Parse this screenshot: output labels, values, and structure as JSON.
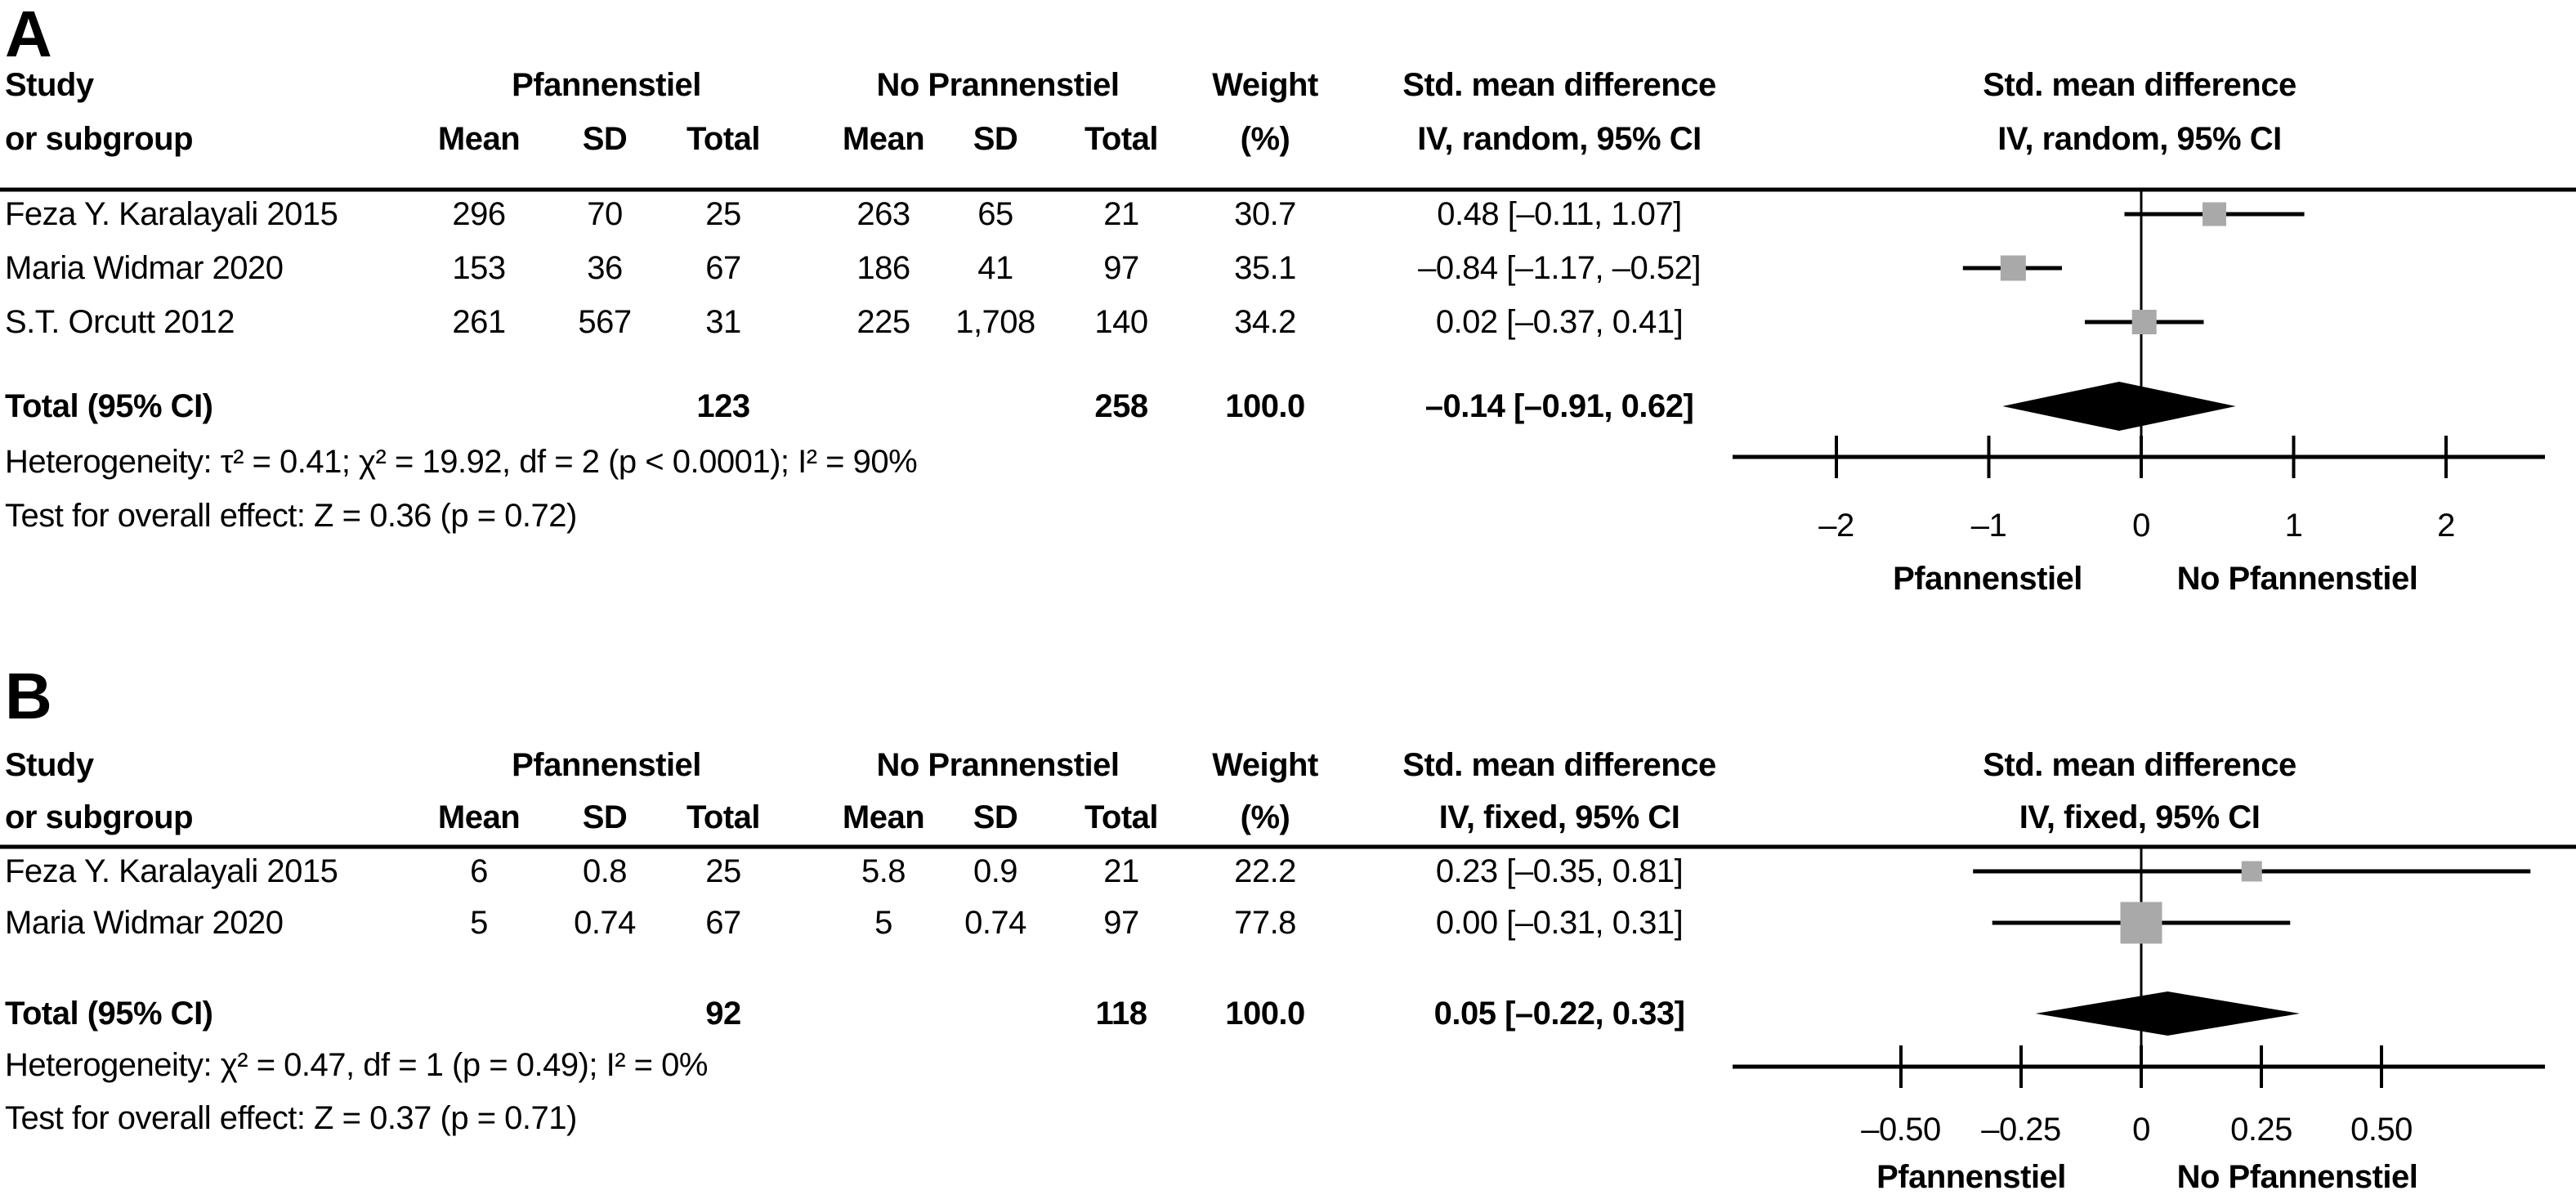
{
  "chart_data": {
    "type": "scatter",
    "subtype": "forest-plot-meta-analysis",
    "marker_color": "#a9a9a9",
    "diamond_color": "#000000",
    "line_color": "#000000",
    "panels": [
      {
        "label": "A",
        "study_header": [
          "Study",
          "or subgroup"
        ],
        "group1_header": "Pfannenstiel",
        "group2_header": "No Prannenstiel",
        "sub_headers": [
          "Mean",
          "SD",
          "Total",
          "Mean",
          "SD",
          "Total"
        ],
        "weight_header": [
          "Weight",
          "(%)"
        ],
        "effect_header": [
          "Std. mean difference",
          "IV, random, 95% CI"
        ],
        "plot_header": [
          "Std. mean difference",
          "IV, random, 95% CI"
        ],
        "rows": [
          {
            "study": "Feza Y. Karalayali 2015",
            "mean1": "296",
            "sd1": "70",
            "total1": "25",
            "mean2": "263",
            "sd2": "65",
            "total2": "21",
            "weight": "30.7",
            "effect": "0.48 [–0.11, 1.07]",
            "est": 0.48,
            "lo": -0.11,
            "hi": 1.07,
            "weight_val": 30.7
          },
          {
            "study": "Maria Widmar 2020",
            "mean1": "153",
            "sd1": "36",
            "total1": "67",
            "mean2": "186",
            "sd2": "41",
            "total2": "97",
            "weight": "35.1",
            "effect": "–0.84 [–1.17, –0.52]",
            "est": -0.84,
            "lo": -1.17,
            "hi": -0.52,
            "weight_val": 35.1
          },
          {
            "study": "S.T. Orcutt 2012",
            "mean1": "261",
            "sd1": "567",
            "total1": "31",
            "mean2": "225",
            "sd2": "1,708",
            "total2": "140",
            "weight": "34.2",
            "effect": "0.02 [–0.37, 0.41]",
            "est": 0.02,
            "lo": -0.37,
            "hi": 0.41,
            "weight_val": 34.2
          }
        ],
        "total": {
          "label": "Total (95% CI)",
          "total1": "123",
          "total2": "258",
          "weight": "100.0",
          "effect": "–0.14 [–0.91, 0.62]",
          "est": -0.14,
          "lo": -0.91,
          "hi": 0.62
        },
        "heterogeneity": "Heterogeneity: τ² = 0.41; χ² = 19.92, df = 2 (p < 0.0001); I² = 90%",
        "overall_effect": "Test for overall effect: Z = 0.36 (p = 0.72)",
        "axis": {
          "ticks": [
            {
              "v": -2,
              "label": "–2"
            },
            {
              "v": -1,
              "label": "–1"
            },
            {
              "v": 0,
              "label": "0"
            },
            {
              "v": 1,
              "label": "1"
            },
            {
              "v": 2,
              "label": "2"
            }
          ],
          "left_label": "Pfannenstiel",
          "right_label": "No Pfannenstiel"
        }
      },
      {
        "label": "B",
        "study_header": [
          "Study",
          "or subgroup"
        ],
        "group1_header": "Pfannenstiel",
        "group2_header": "No Prannenstiel",
        "sub_headers": [
          "Mean",
          "SD",
          "Total",
          "Mean",
          "SD",
          "Total"
        ],
        "weight_header": [
          "Weight",
          "(%)"
        ],
        "effect_header": [
          "Std. mean difference",
          "IV, fixed, 95% CI"
        ],
        "plot_header": [
          "Std. mean difference",
          "IV, fixed, 95% CI"
        ],
        "rows": [
          {
            "study": "Feza Y. Karalayali 2015",
            "mean1": "6",
            "sd1": "0.8",
            "total1": "25",
            "mean2": "5.8",
            "sd2": "0.9",
            "total2": "21",
            "weight": "22.2",
            "effect": "0.23 [–0.35, 0.81]",
            "est": 0.23,
            "lo": -0.35,
            "hi": 0.81,
            "weight_val": 22.2
          },
          {
            "study": "Maria Widmar 2020",
            "mean1": "5",
            "sd1": "0.74",
            "total1": "67",
            "mean2": "5",
            "sd2": "0.74",
            "total2": "97",
            "weight": "77.8",
            "effect": "0.00 [–0.31, 0.31]",
            "est": 0.0,
            "lo": -0.31,
            "hi": 0.31,
            "weight_val": 77.8
          }
        ],
        "total": {
          "label": "Total (95% CI)",
          "total1": "92",
          "total2": "118",
          "weight": "100.0",
          "effect": "0.05 [–0.22, 0.33]",
          "est": 0.05,
          "lo": -0.22,
          "hi": 0.33
        },
        "heterogeneity": "Heterogeneity: χ² = 0.47, df = 1 (p = 0.49); I² = 0%",
        "overall_effect": "Test for overall effect: Z = 0.37 (p = 0.71)",
        "axis": {
          "ticks": [
            {
              "v": -0.5,
              "label": "–0.50"
            },
            {
              "v": -0.25,
              "label": "–0.25"
            },
            {
              "v": 0,
              "label": "0"
            },
            {
              "v": 0.25,
              "label": "0.25"
            },
            {
              "v": 0.5,
              "label": "0.50"
            }
          ],
          "left_label": "Pfannenstiel",
          "right_label": "No Pfannenstiel"
        }
      }
    ]
  }
}
